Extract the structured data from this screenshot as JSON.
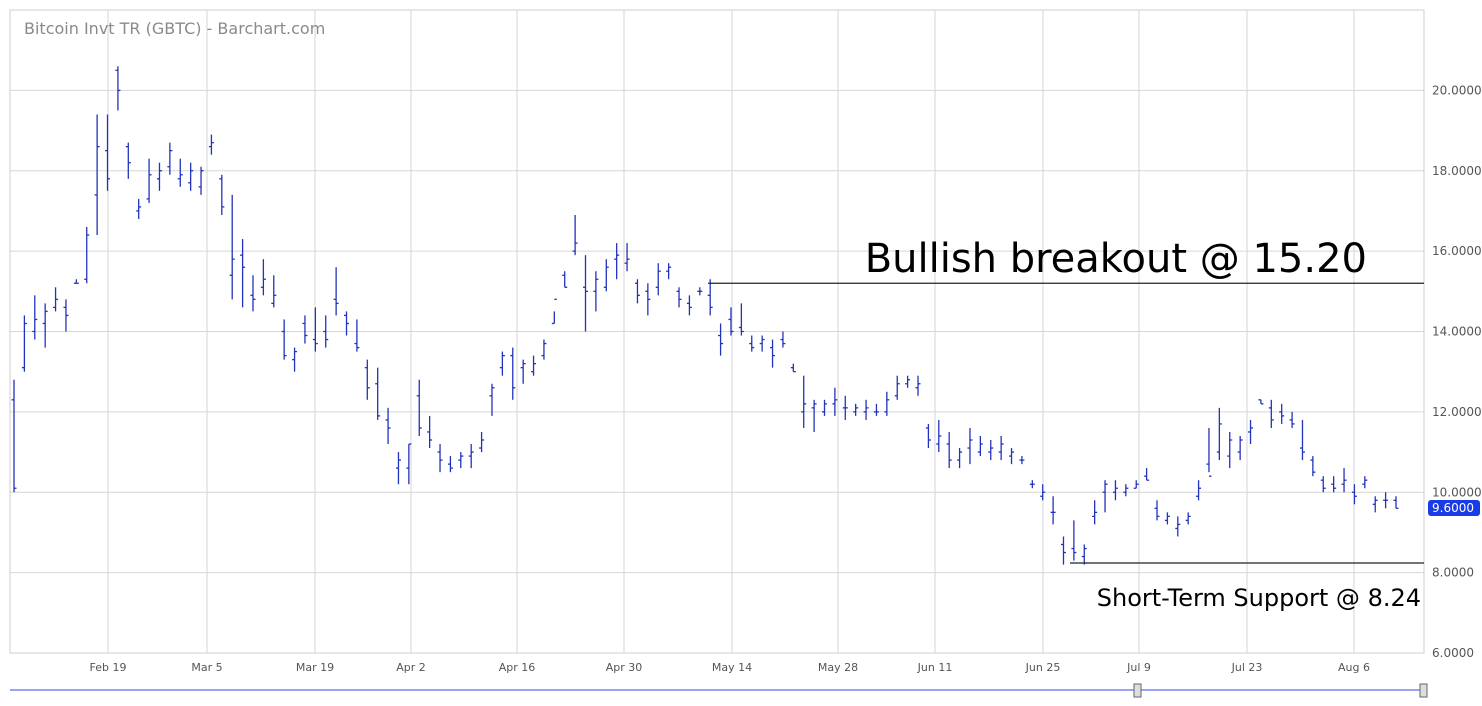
{
  "chart_data": {
    "type": "ohlc",
    "title": "Bitcoin Invt TR (GBTC) - Barchart.com",
    "xlabel": "",
    "ylabel": "",
    "ylim": [
      6,
      22
    ],
    "y_ticks": [
      "6.0000",
      "8.0000",
      "10.0000",
      "12.0000",
      "14.0000",
      "16.0000",
      "18.0000",
      "20.0000"
    ],
    "x_ticks": [
      "Feb 19",
      "Mar 5",
      "Mar 19",
      "Apr 2",
      "Apr 16",
      "Apr 30",
      "May 14",
      "May 28",
      "Jun 11",
      "Jun 25",
      "Jul 9",
      "Jul 23",
      "Aug 6"
    ],
    "last_price": "9.6000",
    "grid": true,
    "annotations": [
      {
        "text": "Bullish breakout @ 15.20",
        "level": 15.2
      },
      {
        "text": "Short-Term Support @ 8.24",
        "level": 8.24
      }
    ],
    "bars": [
      [
        12.8,
        10.0,
        12.3,
        10.1
      ],
      [
        14.4,
        13.0,
        13.1,
        14.2
      ],
      [
        14.9,
        13.8,
        14.0,
        14.3
      ],
      [
        14.7,
        13.6,
        14.2,
        14.5
      ],
      [
        15.1,
        14.5,
        14.6,
        14.8
      ],
      [
        14.8,
        14.0,
        14.6,
        14.4
      ],
      [
        15.3,
        15.2,
        15.2,
        15.2
      ],
      [
        16.6,
        15.2,
        15.3,
        16.4
      ],
      [
        19.4,
        16.4,
        17.4,
        18.6
      ],
      [
        19.4,
        17.5,
        18.5,
        17.8
      ],
      [
        20.6,
        19.5,
        20.5,
        20.0
      ],
      [
        18.7,
        17.8,
        18.6,
        18.2
      ],
      [
        17.3,
        16.8,
        17.0,
        17.1
      ],
      [
        18.3,
        17.2,
        17.3,
        17.9
      ],
      [
        18.2,
        17.5,
        17.8,
        18.0
      ],
      [
        18.7,
        17.9,
        18.1,
        18.5
      ],
      [
        18.3,
        17.6,
        17.8,
        17.9
      ],
      [
        18.2,
        17.5,
        17.7,
        18.0
      ],
      [
        18.1,
        17.4,
        17.6,
        18.0
      ],
      [
        18.9,
        18.4,
        18.6,
        18.7
      ],
      [
        17.9,
        16.9,
        17.8,
        17.1
      ],
      [
        17.4,
        14.8,
        15.4,
        15.8
      ],
      [
        16.3,
        14.6,
        15.9,
        15.6
      ],
      [
        15.4,
        14.5,
        14.9,
        14.8
      ],
      [
        15.8,
        14.9,
        15.1,
        15.3
      ],
      [
        15.4,
        14.6,
        14.7,
        14.9
      ],
      [
        14.3,
        13.3,
        14.0,
        13.4
      ],
      [
        13.6,
        13.0,
        13.3,
        13.5
      ],
      [
        14.4,
        13.7,
        14.2,
        13.9
      ],
      [
        14.6,
        13.5,
        13.8,
        13.7
      ],
      [
        14.4,
        13.6,
        14.0,
        13.8
      ],
      [
        15.6,
        14.4,
        14.8,
        14.7
      ],
      [
        14.5,
        13.9,
        14.4,
        14.2
      ],
      [
        14.3,
        13.5,
        13.7,
        13.6
      ],
      [
        13.3,
        12.3,
        13.1,
        12.6
      ],
      [
        13.1,
        11.8,
        12.7,
        11.9
      ],
      [
        12.1,
        11.2,
        11.8,
        11.6
      ],
      [
        11.0,
        10.2,
        10.6,
        10.8
      ],
      [
        11.2,
        10.2,
        10.6,
        11.2
      ],
      [
        12.8,
        11.4,
        12.4,
        11.6
      ],
      [
        11.9,
        11.1,
        11.5,
        11.3
      ],
      [
        11.2,
        10.5,
        11.0,
        10.8
      ],
      [
        10.9,
        10.5,
        10.7,
        10.6
      ],
      [
        11.0,
        10.6,
        10.8,
        10.9
      ],
      [
        11.2,
        10.6,
        10.9,
        11.0
      ],
      [
        11.5,
        11.0,
        11.1,
        11.3
      ],
      [
        12.7,
        11.9,
        12.4,
        12.6
      ],
      [
        13.5,
        12.9,
        13.1,
        13.4
      ],
      [
        13.6,
        12.3,
        13.4,
        12.6
      ],
      [
        13.3,
        12.7,
        13.1,
        13.2
      ],
      [
        13.4,
        12.9,
        13.0,
        13.2
      ],
      [
        13.8,
        13.3,
        13.4,
        13.7
      ],
      [
        14.5,
        14.2,
        14.2,
        14.8
      ],
      [
        15.5,
        15.1,
        15.4,
        15.1
      ],
      [
        16.9,
        15.9,
        16.0,
        16.2
      ],
      [
        15.9,
        14.0,
        15.1,
        15.0
      ],
      [
        15.5,
        14.5,
        15.0,
        15.3
      ],
      [
        15.8,
        15.0,
        15.1,
        15.6
      ],
      [
        16.2,
        15.3,
        15.8,
        15.9
      ],
      [
        16.2,
        15.5,
        15.7,
        15.8
      ],
      [
        15.3,
        14.7,
        15.2,
        14.9
      ],
      [
        15.2,
        14.4,
        15.0,
        14.8
      ],
      [
        15.7,
        14.9,
        15.1,
        15.5
      ],
      [
        15.7,
        15.3,
        15.5,
        15.6
      ],
      [
        15.1,
        14.6,
        15.0,
        14.8
      ],
      [
        14.9,
        14.4,
        14.7,
        14.6
      ],
      [
        15.1,
        14.9,
        15.0,
        15.0
      ],
      [
        15.3,
        14.4,
        14.9,
        14.6
      ],
      [
        14.2,
        13.4,
        13.9,
        13.7
      ],
      [
        14.6,
        13.9,
        14.3,
        14.0
      ],
      [
        14.7,
        13.9,
        14.1,
        14.0
      ],
      [
        13.9,
        13.5,
        13.7,
        13.6
      ],
      [
        13.9,
        13.5,
        13.7,
        13.8
      ],
      [
        13.8,
        13.1,
        13.6,
        13.4
      ],
      [
        14.0,
        13.6,
        13.8,
        13.7
      ],
      [
        13.2,
        13.0,
        13.1,
        13.0
      ],
      [
        12.9,
        11.6,
        12.0,
        12.2
      ],
      [
        12.3,
        11.5,
        12.1,
        12.2
      ],
      [
        12.3,
        11.9,
        12.0,
        12.2
      ],
      [
        12.6,
        11.9,
        12.2,
        12.3
      ],
      [
        12.4,
        11.8,
        12.1,
        12.1
      ],
      [
        12.2,
        11.9,
        12.0,
        12.1
      ],
      [
        12.3,
        11.8,
        12.0,
        12.1
      ],
      [
        12.2,
        11.9,
        12.0,
        12.0
      ],
      [
        12.5,
        11.9,
        12.0,
        12.3
      ],
      [
        12.9,
        12.3,
        12.4,
        12.7
      ],
      [
        12.9,
        12.6,
        12.7,
        12.8
      ],
      [
        12.9,
        12.4,
        12.6,
        12.7
      ],
      [
        11.7,
        11.1,
        11.6,
        11.3
      ],
      [
        11.8,
        11.0,
        11.2,
        11.4
      ],
      [
        11.5,
        10.6,
        11.2,
        10.8
      ],
      [
        11.1,
        10.6,
        10.8,
        11.0
      ],
      [
        11.6,
        10.7,
        11.1,
        11.3
      ],
      [
        11.4,
        10.9,
        11.0,
        11.2
      ],
      [
        11.3,
        10.8,
        11.0,
        11.1
      ],
      [
        11.4,
        10.8,
        11.0,
        11.2
      ],
      [
        11.1,
        10.7,
        10.9,
        11.0
      ],
      [
        10.9,
        10.7,
        10.8,
        10.8
      ],
      [
        10.3,
        10.1,
        10.2,
        10.2
      ],
      [
        10.2,
        9.8,
        9.9,
        10.0
      ],
      [
        9.9,
        9.2,
        9.5,
        9.5
      ],
      [
        8.9,
        8.2,
        8.7,
        8.5
      ],
      [
        9.3,
        8.3,
        8.6,
        8.5
      ],
      [
        8.7,
        8.2,
        8.4,
        8.6
      ],
      [
        9.8,
        9.2,
        9.4,
        9.5
      ],
      [
        10.3,
        9.5,
        10.0,
        10.2
      ],
      [
        10.3,
        9.8,
        10.0,
        10.1
      ],
      [
        10.2,
        9.9,
        10.0,
        10.1
      ],
      [
        10.3,
        10.1,
        10.1,
        10.2
      ],
      [
        10.6,
        10.3,
        10.4,
        10.3
      ],
      [
        9.8,
        9.3,
        9.6,
        9.4
      ],
      [
        9.5,
        9.2,
        9.3,
        9.4
      ],
      [
        9.4,
        8.9,
        9.1,
        9.2
      ],
      [
        9.5,
        9.2,
        9.3,
        9.4
      ],
      [
        10.3,
        9.8,
        9.9,
        10.1
      ],
      [
        11.6,
        10.5,
        10.7,
        10.4
      ],
      [
        12.1,
        10.8,
        11.0,
        11.7
      ],
      [
        11.5,
        10.6,
        10.9,
        11.3
      ],
      [
        11.4,
        10.8,
        11.0,
        11.3
      ],
      [
        11.8,
        11.2,
        11.5,
        11.6
      ],
      [
        12.3,
        12.2,
        12.3,
        12.2
      ],
      [
        12.3,
        11.6,
        12.1,
        11.8
      ],
      [
        12.2,
        11.7,
        12.0,
        11.9
      ],
      [
        12.0,
        11.6,
        11.8,
        11.7
      ],
      [
        11.8,
        10.8,
        11.1,
        11.0
      ],
      [
        10.9,
        10.4,
        10.8,
        10.5
      ],
      [
        10.4,
        10.0,
        10.3,
        10.1
      ],
      [
        10.4,
        10.0,
        10.2,
        10.1
      ],
      [
        10.6,
        10.0,
        10.2,
        10.3
      ],
      [
        10.2,
        9.7,
        10.0,
        9.9
      ],
      [
        10.4,
        10.1,
        10.2,
        10.3
      ],
      [
        9.9,
        9.5,
        9.7,
        9.8
      ],
      [
        10.0,
        9.6,
        9.8,
        9.8
      ],
      [
        9.9,
        9.6,
        9.8,
        9.6
      ]
    ]
  }
}
